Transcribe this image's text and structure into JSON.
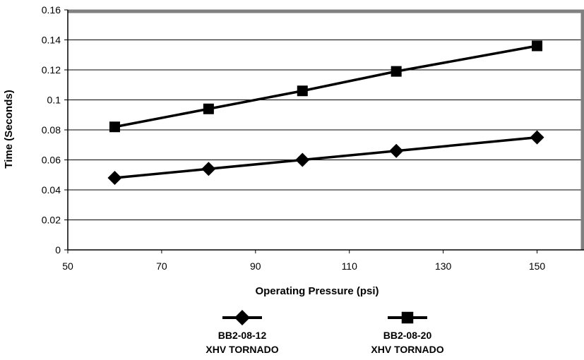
{
  "chart_data": {
    "type": "line",
    "title": "",
    "xlabel": "Operating Pressure (psi)",
    "ylabel": "Time (Seconds)",
    "xlim": [
      50,
      160
    ],
    "ylim": [
      0,
      0.16
    ],
    "x_ticks": [
      "50",
      "70",
      "90",
      "110",
      "130",
      "150"
    ],
    "y_ticks": [
      "0",
      "0.02",
      "0.04",
      "0.06",
      "0.08",
      "0.1",
      "0.12",
      "0.14",
      "0.16"
    ],
    "grid": true,
    "legend_position": "bottom",
    "series": [
      {
        "label_line1": "BB2-08-12",
        "label_line2": "XHV TORNADO",
        "marker": "diamond",
        "color": "#000000",
        "x": [
          60,
          80,
          100,
          120,
          150
        ],
        "y": [
          0.048,
          0.054,
          0.06,
          0.066,
          0.075
        ]
      },
      {
        "label_line1": "BB2-08-20",
        "label_line2": "XHV TORNADO",
        "marker": "square",
        "color": "#000000",
        "x": [
          60,
          80,
          100,
          120,
          150
        ],
        "y": [
          0.082,
          0.094,
          0.106,
          0.119,
          0.136
        ]
      }
    ]
  }
}
